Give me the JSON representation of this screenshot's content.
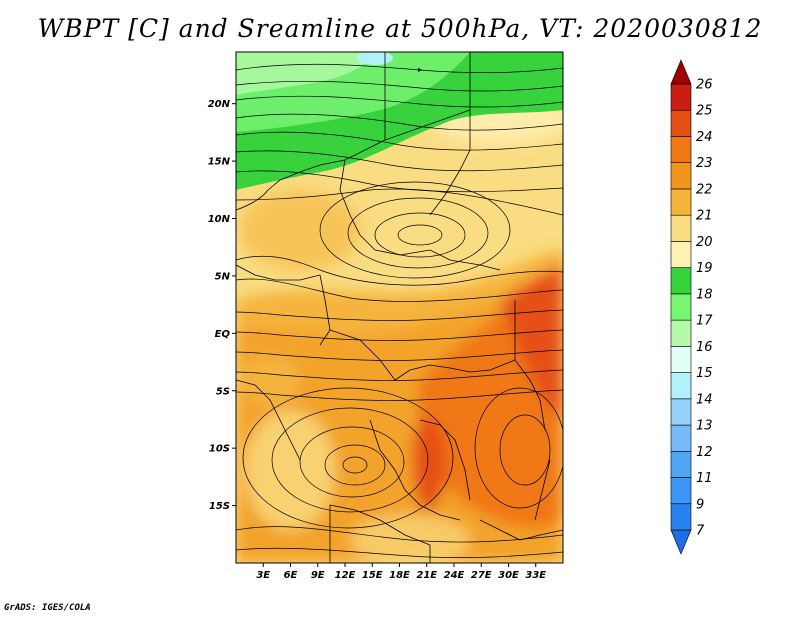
{
  "title": "WBPT [C] and Sreamline at 500hPa, VT: 2020030812",
  "credit": "GrADS: IGES/COLA",
  "map": {
    "variable": "wet-bulb potential temperature",
    "units": "C",
    "level": "500hPa",
    "lon_range": [
      0,
      36
    ],
    "lat_range": [
      -20,
      24.5
    ],
    "lat_labels": [
      {
        "lat": 20,
        "text": "20N"
      },
      {
        "lat": 15,
        "text": "15N"
      },
      {
        "lat": 10,
        "text": "10N"
      },
      {
        "lat": 5,
        "text": "5N"
      },
      {
        "lat": 0,
        "text": "EQ"
      },
      {
        "lat": -5,
        "text": "5S"
      },
      {
        "lat": -10,
        "text": "10S"
      },
      {
        "lat": -15,
        "text": "15S"
      }
    ],
    "lon_labels": [
      {
        "lon": 3,
        "text": "3E"
      },
      {
        "lon": 6,
        "text": "6E"
      },
      {
        "lon": 9,
        "text": "9E"
      },
      {
        "lon": 12,
        "text": "12E"
      },
      {
        "lon": 15,
        "text": "15E"
      },
      {
        "lon": 18,
        "text": "18E"
      },
      {
        "lon": 21,
        "text": "21E"
      },
      {
        "lon": 24,
        "text": "24E"
      },
      {
        "lon": 27,
        "text": "27E"
      },
      {
        "lon": 30,
        "text": "30E"
      },
      {
        "lon": 33,
        "text": "33E"
      }
    ]
  },
  "colorbar": {
    "labels": [
      "7",
      "9",
      "11",
      "12",
      "13",
      "14",
      "15",
      "16",
      "17",
      "18",
      "19",
      "20",
      "21",
      "22",
      "23",
      "24",
      "25",
      "26"
    ],
    "colors": [
      "#1e6ee6",
      "#2882f0",
      "#3c96f5",
      "#50a5f5",
      "#78b9fa",
      "#96d2fa",
      "#b4f0fa",
      "#e1fff5",
      "#b4faaa",
      "#78f573",
      "#37d23c",
      "#fff0b4",
      "#fadc82",
      "#f5b43c",
      "#f0961e",
      "#f07814",
      "#e65014",
      "#c81e14",
      "#a00000"
    ]
  }
}
